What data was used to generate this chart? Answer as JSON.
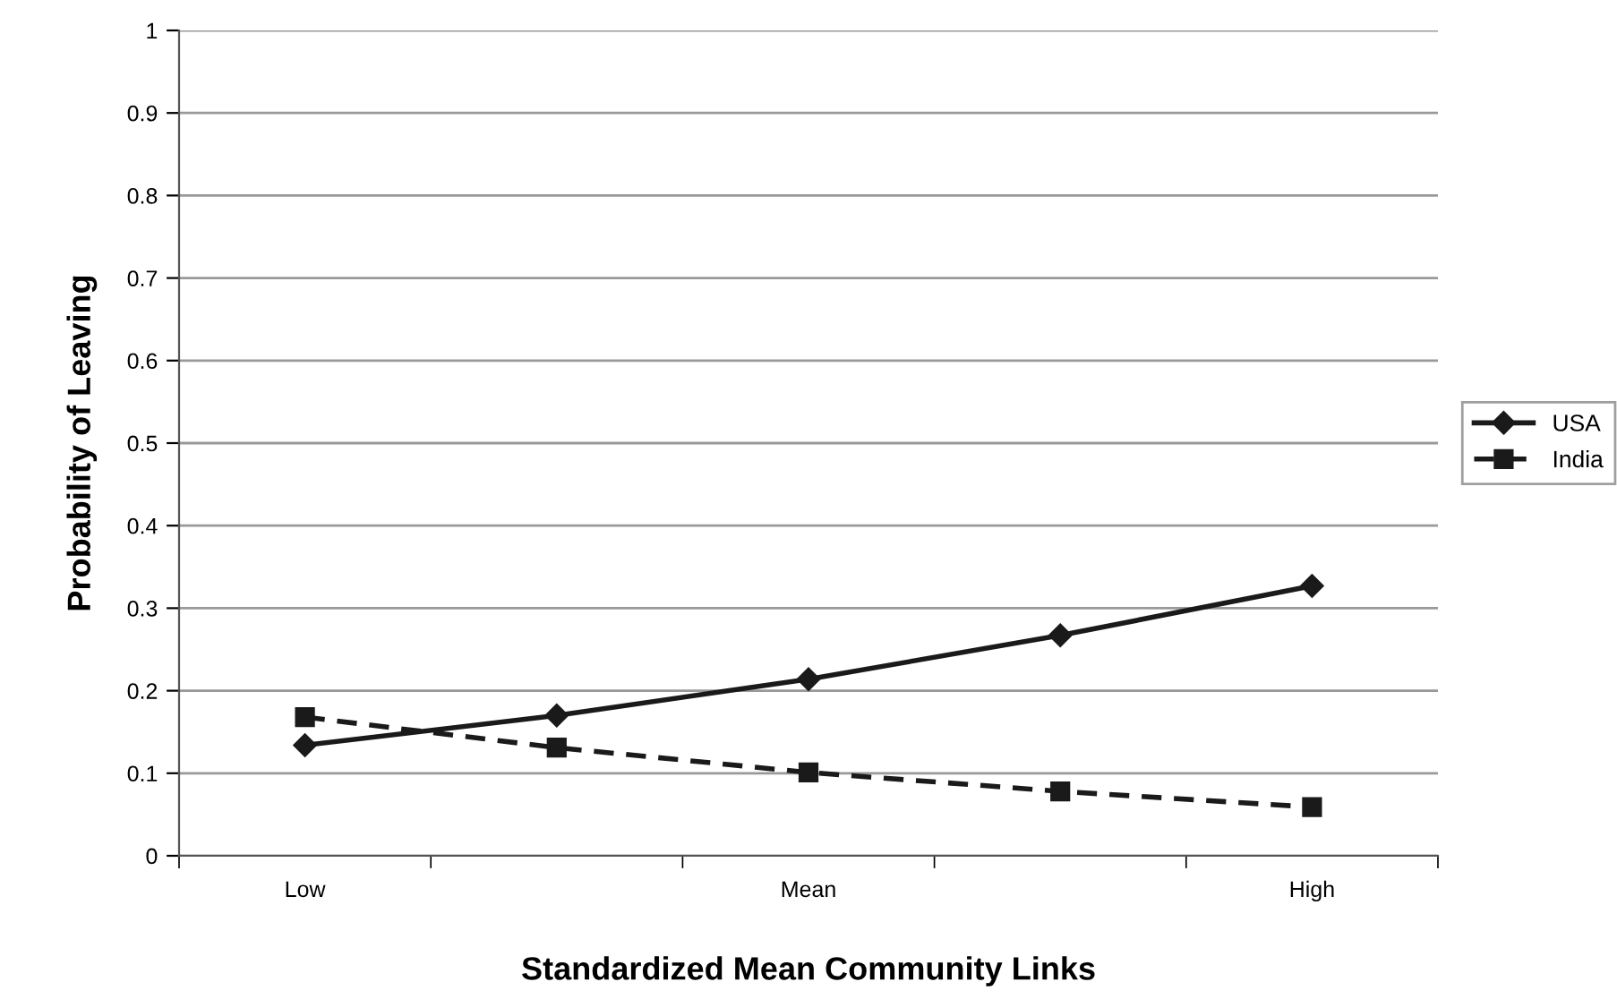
{
  "chart_data": {
    "type": "line",
    "xlabel": "Standardized Mean Community Links",
    "ylabel": "Probability of Leaving",
    "categories": [
      "Low",
      null,
      "Mean",
      null,
      "High"
    ],
    "series": [
      {
        "name": "USA",
        "color": "#1a1a1a",
        "values": [
          0.134,
          0.17,
          0.214,
          0.267,
          0.327
        ],
        "marker": "diamond",
        "line_style": "solid"
      },
      {
        "name": "India",
        "color": "#1a1a1a",
        "values": [
          0.168,
          0.131,
          0.101,
          0.078,
          0.059
        ],
        "marker": "square",
        "line_style": "dashed"
      }
    ],
    "ylim": [
      0,
      1
    ],
    "yticks": [
      0,
      0.1,
      0.2,
      0.3,
      0.4,
      0.5,
      0.6,
      0.7,
      0.8,
      0.9,
      1
    ],
    "grid": "y",
    "legend": "right"
  }
}
